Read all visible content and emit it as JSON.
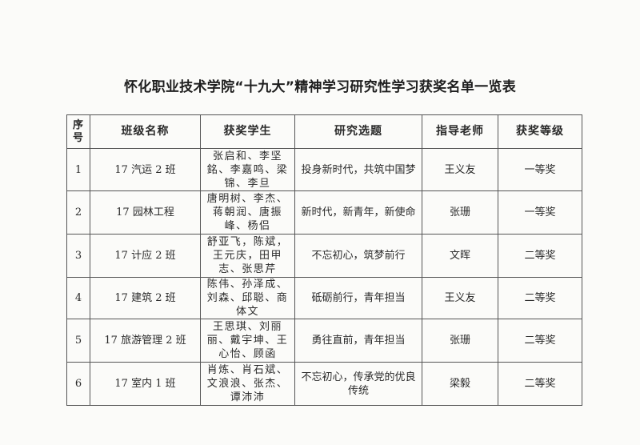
{
  "title": "怀化职业技术学院“十九大”精神学习研究性学习获奖名单一览表",
  "headers": {
    "seq": "序号",
    "class": "班级名称",
    "students": "获奖学生",
    "topic": "研究选题",
    "teacher": "指导老师",
    "grade": "获奖等级"
  },
  "rows": [
    {
      "seq": "1",
      "class": "17 汽运 2 班",
      "students": "张启和、李坚銘、李嘉鸣、梁锦、李旦",
      "topic": "投身新时代，共筑中国梦",
      "teacher": "王义友",
      "grade": "一等奖"
    },
    {
      "seq": "2",
      "class": "17 园林工程",
      "students": "唐明树、李杰、蒋朝润、唐振峰、杨侣",
      "topic": "新时代，新青年，新使命",
      "teacher": "张珊",
      "grade": "一等奖"
    },
    {
      "seq": "3",
      "class": "17 计应 2 班",
      "students": "舒亚飞，陈斌，王元庆，田甲志、张思芹",
      "topic": "不忘初心，筑梦前行",
      "teacher": "文晖",
      "grade": "二等奖"
    },
    {
      "seq": "4",
      "class": "17 建筑 2 班",
      "students": "陈伟、孙泽成、刘森、邱聪、商体文",
      "topic": "砥砺前行，青年担当",
      "teacher": "王义友",
      "grade": "二等奖"
    },
    {
      "seq": "5",
      "class": "17 旅游管理 2 班",
      "students": "王思琪、刘丽丽、戴宇坤、王心怡、顾函",
      "topic": "勇往直前，青年担当",
      "teacher": "张珊",
      "grade": "二等奖"
    },
    {
      "seq": "6",
      "class": "17 室内 1 班",
      "students": "肖炼、肖石斌、文浪浪、张杰、谭沛沛",
      "topic": "不忘初心，传承党的优良传统",
      "teacher": "梁毅",
      "grade": "二等奖"
    }
  ]
}
